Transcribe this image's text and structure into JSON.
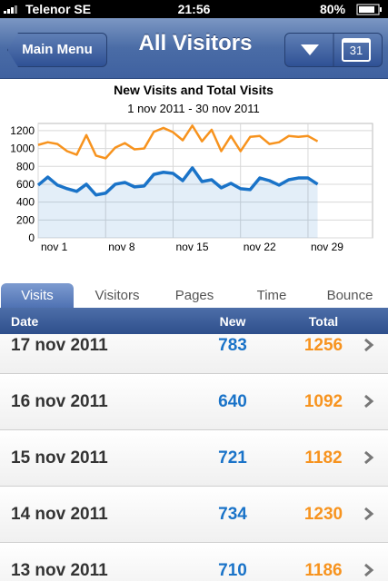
{
  "status_bar": {
    "carrier": "Telenor SE",
    "time": "21:56",
    "battery": "80%"
  },
  "nav": {
    "back": "Main Menu",
    "title": "All Visitors",
    "calendar_day": "31"
  },
  "chart_data": {
    "type": "line",
    "title": "New Visits and Total Visits",
    "subtitle": "1 nov 2011 - 30 nov 2011",
    "x": [
      1,
      2,
      3,
      4,
      5,
      6,
      7,
      8,
      9,
      10,
      11,
      12,
      13,
      14,
      15,
      16,
      17,
      18,
      19,
      20,
      21,
      22,
      23,
      24,
      25,
      26,
      27,
      28,
      29,
      30
    ],
    "series": [
      {
        "name": "Total",
        "color": "#f7931e",
        "values": [
          1040,
          1070,
          1050,
          970,
          930,
          1150,
          920,
          890,
          1010,
          1060,
          990,
          1000,
          1186,
          1230,
          1182,
          1092,
          1256,
          1080,
          1210,
          970,
          1140,
          970,
          1130,
          1140,
          1050,
          1070,
          1140,
          1130,
          1140,
          1080
        ]
      },
      {
        "name": "New",
        "color": "#1a73c8",
        "values": [
          590,
          680,
          590,
          550,
          520,
          600,
          480,
          500,
          600,
          620,
          570,
          580,
          710,
          734,
          721,
          640,
          783,
          630,
          650,
          560,
          610,
          550,
          540,
          670,
          640,
          590,
          650,
          670,
          670,
          600
        ]
      }
    ],
    "xlim": [
      1,
      35.7
    ],
    "xticks": [
      {
        "value": 1,
        "label": "nov 1"
      },
      {
        "value": 8,
        "label": "nov 8"
      },
      {
        "value": 15,
        "label": "nov 15"
      },
      {
        "value": 22,
        "label": "nov 22"
      },
      {
        "value": 29,
        "label": "nov 29"
      }
    ],
    "ylim": [
      0,
      1280
    ],
    "yticks": [
      0,
      200,
      400,
      600,
      800,
      1000,
      1200
    ],
    "grid": true
  },
  "tabs": [
    "Visits",
    "Visitors",
    "Pages",
    "Time",
    "Bounce"
  ],
  "table": {
    "columns": [
      "Date",
      "New",
      "Total"
    ],
    "rows": [
      [
        "17 nov 2011",
        "783",
        "1256"
      ],
      [
        "16 nov 2011",
        "640",
        "1092"
      ],
      [
        "15 nov 2011",
        "721",
        "1182"
      ],
      [
        "14 nov 2011",
        "734",
        "1230"
      ],
      [
        "13 nov 2011",
        "710",
        "1186"
      ]
    ]
  }
}
